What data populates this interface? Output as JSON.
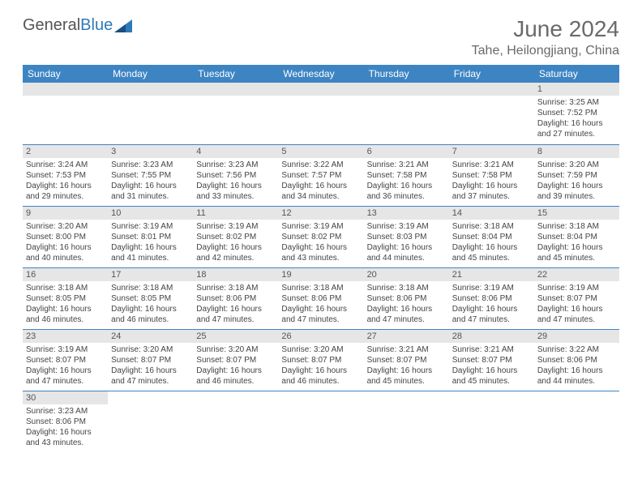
{
  "brand": {
    "part1": "General",
    "part2": "Blue"
  },
  "title": {
    "month": "June 2024",
    "location": "Tahe, Heilongjiang, China"
  },
  "colors": {
    "header_bg": "#3d84c3",
    "header_fg": "#ffffff",
    "daynum_bg": "#e6e6e6",
    "text": "#444444",
    "title": "#6a6a6a",
    "rule": "#3d84c3"
  },
  "weekdays": [
    "Sunday",
    "Monday",
    "Tuesday",
    "Wednesday",
    "Thursday",
    "Friday",
    "Saturday"
  ],
  "weeks": [
    [
      {
        "n": "",
        "sr": "",
        "ss": "",
        "dl": ""
      },
      {
        "n": "",
        "sr": "",
        "ss": "",
        "dl": ""
      },
      {
        "n": "",
        "sr": "",
        "ss": "",
        "dl": ""
      },
      {
        "n": "",
        "sr": "",
        "ss": "",
        "dl": ""
      },
      {
        "n": "",
        "sr": "",
        "ss": "",
        "dl": ""
      },
      {
        "n": "",
        "sr": "",
        "ss": "",
        "dl": ""
      },
      {
        "n": "1",
        "sr": "Sunrise: 3:25 AM",
        "ss": "Sunset: 7:52 PM",
        "dl": "Daylight: 16 hours and 27 minutes."
      }
    ],
    [
      {
        "n": "2",
        "sr": "Sunrise: 3:24 AM",
        "ss": "Sunset: 7:53 PM",
        "dl": "Daylight: 16 hours and 29 minutes."
      },
      {
        "n": "3",
        "sr": "Sunrise: 3:23 AM",
        "ss": "Sunset: 7:55 PM",
        "dl": "Daylight: 16 hours and 31 minutes."
      },
      {
        "n": "4",
        "sr": "Sunrise: 3:23 AM",
        "ss": "Sunset: 7:56 PM",
        "dl": "Daylight: 16 hours and 33 minutes."
      },
      {
        "n": "5",
        "sr": "Sunrise: 3:22 AM",
        "ss": "Sunset: 7:57 PM",
        "dl": "Daylight: 16 hours and 34 minutes."
      },
      {
        "n": "6",
        "sr": "Sunrise: 3:21 AM",
        "ss": "Sunset: 7:58 PM",
        "dl": "Daylight: 16 hours and 36 minutes."
      },
      {
        "n": "7",
        "sr": "Sunrise: 3:21 AM",
        "ss": "Sunset: 7:58 PM",
        "dl": "Daylight: 16 hours and 37 minutes."
      },
      {
        "n": "8",
        "sr": "Sunrise: 3:20 AM",
        "ss": "Sunset: 7:59 PM",
        "dl": "Daylight: 16 hours and 39 minutes."
      }
    ],
    [
      {
        "n": "9",
        "sr": "Sunrise: 3:20 AM",
        "ss": "Sunset: 8:00 PM",
        "dl": "Daylight: 16 hours and 40 minutes."
      },
      {
        "n": "10",
        "sr": "Sunrise: 3:19 AM",
        "ss": "Sunset: 8:01 PM",
        "dl": "Daylight: 16 hours and 41 minutes."
      },
      {
        "n": "11",
        "sr": "Sunrise: 3:19 AM",
        "ss": "Sunset: 8:02 PM",
        "dl": "Daylight: 16 hours and 42 minutes."
      },
      {
        "n": "12",
        "sr": "Sunrise: 3:19 AM",
        "ss": "Sunset: 8:02 PM",
        "dl": "Daylight: 16 hours and 43 minutes."
      },
      {
        "n": "13",
        "sr": "Sunrise: 3:19 AM",
        "ss": "Sunset: 8:03 PM",
        "dl": "Daylight: 16 hours and 44 minutes."
      },
      {
        "n": "14",
        "sr": "Sunrise: 3:18 AM",
        "ss": "Sunset: 8:04 PM",
        "dl": "Daylight: 16 hours and 45 minutes."
      },
      {
        "n": "15",
        "sr": "Sunrise: 3:18 AM",
        "ss": "Sunset: 8:04 PM",
        "dl": "Daylight: 16 hours and 45 minutes."
      }
    ],
    [
      {
        "n": "16",
        "sr": "Sunrise: 3:18 AM",
        "ss": "Sunset: 8:05 PM",
        "dl": "Daylight: 16 hours and 46 minutes."
      },
      {
        "n": "17",
        "sr": "Sunrise: 3:18 AM",
        "ss": "Sunset: 8:05 PM",
        "dl": "Daylight: 16 hours and 46 minutes."
      },
      {
        "n": "18",
        "sr": "Sunrise: 3:18 AM",
        "ss": "Sunset: 8:06 PM",
        "dl": "Daylight: 16 hours and 47 minutes."
      },
      {
        "n": "19",
        "sr": "Sunrise: 3:18 AM",
        "ss": "Sunset: 8:06 PM",
        "dl": "Daylight: 16 hours and 47 minutes."
      },
      {
        "n": "20",
        "sr": "Sunrise: 3:18 AM",
        "ss": "Sunset: 8:06 PM",
        "dl": "Daylight: 16 hours and 47 minutes."
      },
      {
        "n": "21",
        "sr": "Sunrise: 3:19 AM",
        "ss": "Sunset: 8:06 PM",
        "dl": "Daylight: 16 hours and 47 minutes."
      },
      {
        "n": "22",
        "sr": "Sunrise: 3:19 AM",
        "ss": "Sunset: 8:07 PM",
        "dl": "Daylight: 16 hours and 47 minutes."
      }
    ],
    [
      {
        "n": "23",
        "sr": "Sunrise: 3:19 AM",
        "ss": "Sunset: 8:07 PM",
        "dl": "Daylight: 16 hours and 47 minutes."
      },
      {
        "n": "24",
        "sr": "Sunrise: 3:20 AM",
        "ss": "Sunset: 8:07 PM",
        "dl": "Daylight: 16 hours and 47 minutes."
      },
      {
        "n": "25",
        "sr": "Sunrise: 3:20 AM",
        "ss": "Sunset: 8:07 PM",
        "dl": "Daylight: 16 hours and 46 minutes."
      },
      {
        "n": "26",
        "sr": "Sunrise: 3:20 AM",
        "ss": "Sunset: 8:07 PM",
        "dl": "Daylight: 16 hours and 46 minutes."
      },
      {
        "n": "27",
        "sr": "Sunrise: 3:21 AM",
        "ss": "Sunset: 8:07 PM",
        "dl": "Daylight: 16 hours and 45 minutes."
      },
      {
        "n": "28",
        "sr": "Sunrise: 3:21 AM",
        "ss": "Sunset: 8:07 PM",
        "dl": "Daylight: 16 hours and 45 minutes."
      },
      {
        "n": "29",
        "sr": "Sunrise: 3:22 AM",
        "ss": "Sunset: 8:06 PM",
        "dl": "Daylight: 16 hours and 44 minutes."
      }
    ],
    [
      {
        "n": "30",
        "sr": "Sunrise: 3:23 AM",
        "ss": "Sunset: 8:06 PM",
        "dl": "Daylight: 16 hours and 43 minutes."
      },
      {
        "n": "",
        "sr": "",
        "ss": "",
        "dl": ""
      },
      {
        "n": "",
        "sr": "",
        "ss": "",
        "dl": ""
      },
      {
        "n": "",
        "sr": "",
        "ss": "",
        "dl": ""
      },
      {
        "n": "",
        "sr": "",
        "ss": "",
        "dl": ""
      },
      {
        "n": "",
        "sr": "",
        "ss": "",
        "dl": ""
      },
      {
        "n": "",
        "sr": "",
        "ss": "",
        "dl": ""
      }
    ]
  ]
}
